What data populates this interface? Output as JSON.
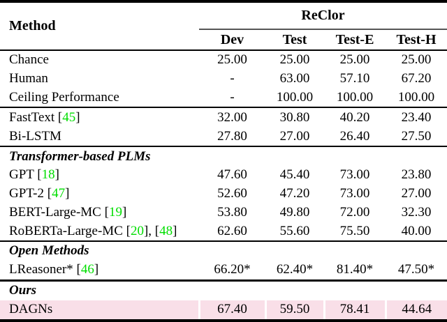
{
  "table": {
    "method_header": "Method",
    "group_header": "ReClor",
    "columns": [
      "Dev",
      "Test",
      "Test-E",
      "Test-H"
    ],
    "colors": {
      "citation_green": "#00DE00",
      "highlight_pink": "#F9DFE8"
    },
    "sections": [
      {
        "rows": [
          {
            "label": [
              {
                "text": "Chance"
              }
            ],
            "values": [
              "25.00",
              "25.00",
              "25.00",
              "25.00"
            ]
          },
          {
            "label": [
              {
                "text": "Human"
              }
            ],
            "values": [
              "-",
              "63.00",
              "57.10",
              "67.20"
            ]
          },
          {
            "label": [
              {
                "text": "Ceiling Performance"
              }
            ],
            "values": [
              "-",
              "100.00",
              "100.00",
              "100.00"
            ]
          }
        ]
      },
      {
        "rows": [
          {
            "label": [
              {
                "text": "FastText ["
              },
              {
                "text": "45",
                "green": true
              },
              {
                "text": "]"
              }
            ],
            "values": [
              "32.00",
              "30.80",
              "40.20",
              "23.40"
            ]
          },
          {
            "label": [
              {
                "text": "Bi-LSTM"
              }
            ],
            "values": [
              "27.80",
              "27.00",
              "26.40",
              "27.50"
            ]
          }
        ]
      },
      {
        "heading": "Transformer-based PLMs",
        "rows": [
          {
            "label": [
              {
                "text": "GPT ["
              },
              {
                "text": "18",
                "green": true
              },
              {
                "text": "]"
              }
            ],
            "values": [
              "47.60",
              "45.40",
              "73.00",
              "23.80"
            ]
          },
          {
            "label": [
              {
                "text": "GPT-2 ["
              },
              {
                "text": "47",
                "green": true
              },
              {
                "text": "]"
              }
            ],
            "values": [
              "52.60",
              "47.20",
              "73.00",
              "27.00"
            ]
          },
          {
            "label": [
              {
                "text": "BERT-Large-MC ["
              },
              {
                "text": "19",
                "green": true
              },
              {
                "text": "]"
              }
            ],
            "values": [
              "53.80",
              "49.80",
              "72.00",
              "32.30"
            ]
          },
          {
            "label": [
              {
                "text": "RoBERTa-Large-MC ["
              },
              {
                "text": "20",
                "green": true
              },
              {
                "text": "], ["
              },
              {
                "text": "48",
                "green": true
              },
              {
                "text": "]"
              }
            ],
            "values": [
              "62.60",
              "55.60",
              "75.50",
              "40.00"
            ]
          }
        ]
      },
      {
        "heading": "Open Methods",
        "rows": [
          {
            "label": [
              {
                "text": "LReasoner* ["
              },
              {
                "text": "46",
                "green": true
              },
              {
                "text": "]"
              }
            ],
            "values": [
              "66.20*",
              "62.40*",
              "81.40*",
              "47.50*"
            ]
          }
        ]
      },
      {
        "heading": "Ours",
        "heavy_rule": true,
        "rows": [
          {
            "label": [
              {
                "text": "DAGNs"
              }
            ],
            "values": [
              "67.40",
              "59.50",
              "78.41",
              "44.64"
            ],
            "highlight": true,
            "bold_values": true
          }
        ]
      }
    ]
  }
}
